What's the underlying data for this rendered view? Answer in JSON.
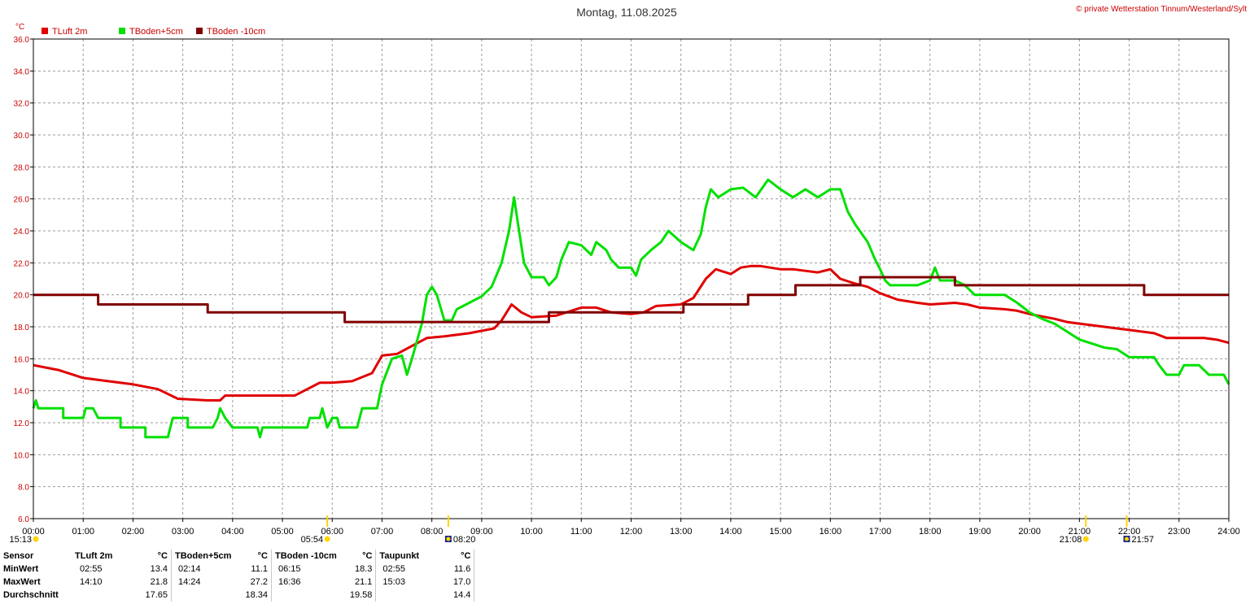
{
  "title": "Montag, 11.08.2025",
  "copyright": "© private Wetterstation Tinnum/Westerland/Sylt",
  "chart_data": {
    "type": "line",
    "unit_label": "°C",
    "ylim": [
      6,
      36
    ],
    "yticks": [
      "6.0",
      "8.0",
      "10.0",
      "12.0",
      "14.0",
      "16.0",
      "18.0",
      "20.0",
      "22.0",
      "24.0",
      "26.0",
      "28.0",
      "30.0",
      "32.0",
      "34.0",
      "36.0"
    ],
    "xlim": [
      0,
      24
    ],
    "xticks": [
      "00:00",
      "01:00",
      "02:00",
      "03:00",
      "04:00",
      "05:00",
      "06:00",
      "07:00",
      "08:00",
      "09:00",
      "10:00",
      "11:00",
      "12:00",
      "13:00",
      "14:00",
      "15:00",
      "16:00",
      "17:00",
      "18:00",
      "19:00",
      "20:00",
      "21:00",
      "22:00",
      "23:00",
      "24:00"
    ],
    "grid": true,
    "legend_position": "top-left",
    "series": [
      {
        "name": "TLuft 2m",
        "color": "#e00000",
        "points": [
          [
            0,
            15.6
          ],
          [
            0.5,
            15.3
          ],
          [
            1,
            14.8
          ],
          [
            1.5,
            14.6
          ],
          [
            2,
            14.4
          ],
          [
            2.5,
            14.1
          ],
          [
            2.9,
            13.5
          ],
          [
            3.5,
            13.4
          ],
          [
            3.75,
            13.4
          ],
          [
            3.85,
            13.7
          ],
          [
            4.5,
            13.7
          ],
          [
            5,
            13.7
          ],
          [
            5.25,
            13.7
          ],
          [
            5.5,
            14.1
          ],
          [
            5.75,
            14.5
          ],
          [
            6,
            14.5
          ],
          [
            6.4,
            14.6
          ],
          [
            6.8,
            15.1
          ],
          [
            7,
            16.2
          ],
          [
            7.3,
            16.3
          ],
          [
            7.6,
            16.8
          ],
          [
            7.9,
            17.3
          ],
          [
            8.25,
            17.4
          ],
          [
            8.75,
            17.6
          ],
          [
            9.25,
            17.9
          ],
          [
            9.4,
            18.4
          ],
          [
            9.6,
            19.4
          ],
          [
            9.8,
            18.9
          ],
          [
            10,
            18.6
          ],
          [
            10.5,
            18.7
          ],
          [
            11,
            19.2
          ],
          [
            11.3,
            19.2
          ],
          [
            11.6,
            18.9
          ],
          [
            12,
            18.8
          ],
          [
            12.25,
            18.9
          ],
          [
            12.5,
            19.3
          ],
          [
            13,
            19.4
          ],
          [
            13.25,
            19.8
          ],
          [
            13.5,
            21.0
          ],
          [
            13.7,
            21.6
          ],
          [
            14,
            21.3
          ],
          [
            14.2,
            21.7
          ],
          [
            14.4,
            21.8
          ],
          [
            14.6,
            21.8
          ],
          [
            15,
            21.6
          ],
          [
            15.25,
            21.6
          ],
          [
            15.5,
            21.5
          ],
          [
            15.75,
            21.4
          ],
          [
            16,
            21.6
          ],
          [
            16.2,
            21.0
          ],
          [
            16.5,
            20.7
          ],
          [
            16.75,
            20.5
          ],
          [
            17,
            20.1
          ],
          [
            17.35,
            19.7
          ],
          [
            17.75,
            19.5
          ],
          [
            18,
            19.4
          ],
          [
            18.5,
            19.5
          ],
          [
            18.75,
            19.4
          ],
          [
            19,
            19.2
          ],
          [
            19.5,
            19.1
          ],
          [
            19.75,
            19.0
          ],
          [
            20,
            18.8
          ],
          [
            20.5,
            18.5
          ],
          [
            20.75,
            18.3
          ],
          [
            21,
            18.2
          ],
          [
            21.5,
            18.0
          ],
          [
            22,
            17.8
          ],
          [
            22.5,
            17.6
          ],
          [
            22.75,
            17.3
          ],
          [
            23,
            17.3
          ],
          [
            23.5,
            17.3
          ],
          [
            23.75,
            17.2
          ],
          [
            24,
            17.0
          ]
        ]
      },
      {
        "name": "TBoden+5cm",
        "color": "#00e000",
        "points": [
          [
            0,
            12.9
          ],
          [
            0.05,
            13.4
          ],
          [
            0.1,
            12.9
          ],
          [
            0.6,
            12.9
          ],
          [
            0.6,
            12.3
          ],
          [
            1,
            12.3
          ],
          [
            1.05,
            12.9
          ],
          [
            1.2,
            12.9
          ],
          [
            1.3,
            12.3
          ],
          [
            1.75,
            12.3
          ],
          [
            1.75,
            11.7
          ],
          [
            2.25,
            11.7
          ],
          [
            2.25,
            11.1
          ],
          [
            2.7,
            11.1
          ],
          [
            2.75,
            11.7
          ],
          [
            2.8,
            12.3
          ],
          [
            3.1,
            12.3
          ],
          [
            3.1,
            11.7
          ],
          [
            3.6,
            11.7
          ],
          [
            3.7,
            12.3
          ],
          [
            3.75,
            12.9
          ],
          [
            3.85,
            12.3
          ],
          [
            4,
            11.7
          ],
          [
            4.5,
            11.7
          ],
          [
            4.55,
            11.1
          ],
          [
            4.6,
            11.7
          ],
          [
            5.5,
            11.7
          ],
          [
            5.55,
            12.3
          ],
          [
            5.75,
            12.3
          ],
          [
            5.8,
            12.9
          ],
          [
            5.85,
            12.3
          ],
          [
            5.9,
            11.7
          ],
          [
            6,
            12.3
          ],
          [
            6.1,
            12.3
          ],
          [
            6.15,
            11.7
          ],
          [
            6.5,
            11.7
          ],
          [
            6.55,
            12.3
          ],
          [
            6.6,
            12.9
          ],
          [
            6.9,
            12.9
          ],
          [
            7,
            14.4
          ],
          [
            7.2,
            16.0
          ],
          [
            7.4,
            16.2
          ],
          [
            7.5,
            15.0
          ],
          [
            7.6,
            16.0
          ],
          [
            7.8,
            18.2
          ],
          [
            7.9,
            20.0
          ],
          [
            8.0,
            20.5
          ],
          [
            8.1,
            20.0
          ],
          [
            8.25,
            18.4
          ],
          [
            8.4,
            18.4
          ],
          [
            8.5,
            19.1
          ],
          [
            8.75,
            19.5
          ],
          [
            9,
            19.9
          ],
          [
            9.2,
            20.5
          ],
          [
            9.4,
            22.0
          ],
          [
            9.55,
            24.0
          ],
          [
            9.65,
            26.1
          ],
          [
            9.75,
            24.0
          ],
          [
            9.85,
            22.0
          ],
          [
            10,
            21.1
          ],
          [
            10.25,
            21.1
          ],
          [
            10.35,
            20.6
          ],
          [
            10.5,
            21.1
          ],
          [
            10.6,
            22.2
          ],
          [
            10.75,
            23.3
          ],
          [
            11,
            23.1
          ],
          [
            11.2,
            22.5
          ],
          [
            11.3,
            23.3
          ],
          [
            11.5,
            22.8
          ],
          [
            11.6,
            22.2
          ],
          [
            11.75,
            21.7
          ],
          [
            12,
            21.7
          ],
          [
            12.1,
            21.2
          ],
          [
            12.2,
            22.2
          ],
          [
            12.4,
            22.8
          ],
          [
            12.6,
            23.3
          ],
          [
            12.75,
            24.0
          ],
          [
            13,
            23.3
          ],
          [
            13.25,
            22.8
          ],
          [
            13.4,
            23.8
          ],
          [
            13.5,
            25.5
          ],
          [
            13.6,
            26.6
          ],
          [
            13.75,
            26.1
          ],
          [
            14,
            26.6
          ],
          [
            14.25,
            26.7
          ],
          [
            14.5,
            26.1
          ],
          [
            14.75,
            27.2
          ],
          [
            15,
            26.6
          ],
          [
            15.25,
            26.1
          ],
          [
            15.5,
            26.6
          ],
          [
            15.75,
            26.1
          ],
          [
            16,
            26.6
          ],
          [
            16.2,
            26.6
          ],
          [
            16.35,
            25.2
          ],
          [
            16.5,
            24.4
          ],
          [
            16.75,
            23.3
          ],
          [
            16.9,
            22.2
          ],
          [
            17,
            21.6
          ],
          [
            17.1,
            20.9
          ],
          [
            17.2,
            20.6
          ],
          [
            17.5,
            20.6
          ],
          [
            17.75,
            20.6
          ],
          [
            18,
            20.9
          ],
          [
            18.1,
            21.7
          ],
          [
            18.2,
            20.9
          ],
          [
            18.5,
            20.9
          ],
          [
            18.7,
            20.6
          ],
          [
            18.9,
            20.0
          ],
          [
            19.25,
            20.0
          ],
          [
            19.5,
            20.0
          ],
          [
            19.75,
            19.5
          ],
          [
            20,
            18.9
          ],
          [
            20.25,
            18.5
          ],
          [
            20.5,
            18.2
          ],
          [
            20.75,
            17.7
          ],
          [
            21,
            17.2
          ],
          [
            21.5,
            16.7
          ],
          [
            21.75,
            16.6
          ],
          [
            22,
            16.1
          ],
          [
            22.5,
            16.1
          ],
          [
            22.6,
            15.6
          ],
          [
            22.75,
            15.0
          ],
          [
            23,
            15.0
          ],
          [
            23.1,
            15.6
          ],
          [
            23.4,
            15.6
          ],
          [
            23.6,
            15.0
          ],
          [
            23.9,
            15.0
          ],
          [
            24,
            14.4
          ]
        ]
      },
      {
        "name": "TBoden -10cm",
        "color": "#800000",
        "points": [
          [
            0,
            20.0
          ],
          [
            1.3,
            20.0
          ],
          [
            1.3,
            19.4
          ],
          [
            3.5,
            19.4
          ],
          [
            3.5,
            18.9
          ],
          [
            6.25,
            18.9
          ],
          [
            6.25,
            18.3
          ],
          [
            10.35,
            18.3
          ],
          [
            10.35,
            18.9
          ],
          [
            13.05,
            18.9
          ],
          [
            13.05,
            19.4
          ],
          [
            14.35,
            19.4
          ],
          [
            14.35,
            20.0
          ],
          [
            15.3,
            20.0
          ],
          [
            15.3,
            20.6
          ],
          [
            16.6,
            20.6
          ],
          [
            16.6,
            21.1
          ],
          [
            18.5,
            21.1
          ],
          [
            18.5,
            20.6
          ],
          [
            22.3,
            20.6
          ],
          [
            22.3,
            20.0
          ],
          [
            24,
            20.0
          ]
        ]
      }
    ],
    "sun_events": [
      {
        "time": "15:13",
        "hour": 0,
        "icon": "sun-dot-icon"
      },
      {
        "time": "05:54",
        "hour": 5.9,
        "icon": "sunrise-icon"
      },
      {
        "time": "08:20",
        "hour": 8.33,
        "icon": "moon-phase-icon"
      },
      {
        "time": "21:08",
        "hour": 21.13,
        "icon": "sunset-icon"
      },
      {
        "time": "21:57",
        "hour": 21.95,
        "icon": "moon-phase-icon"
      }
    ]
  },
  "stats": {
    "sensor_label": "Sensor",
    "rows": [
      "MinWert",
      "MaxWert",
      "Durchschnitt"
    ],
    "sensors": [
      {
        "name": "TLuft 2m",
        "unit": "°C",
        "min_time": "02:55",
        "min": "13.4",
        "max_time": "14:10",
        "max": "21.8",
        "avg": "17.65"
      },
      {
        "name": "TBoden+5cm",
        "unit": "°C",
        "min_time": "02:14",
        "min": "11.1",
        "max_time": "14:24",
        "max": "27.2",
        "avg": "18.34"
      },
      {
        "name": "TBoden -10cm",
        "unit": "°C",
        "min_time": "06:15",
        "min": "18.3",
        "max_time": "16:36",
        "max": "21.1",
        "avg": "19.58"
      },
      {
        "name": "Taupunkt",
        "unit": "°C",
        "min_time": "02:55",
        "min": "11.6",
        "max_time": "15:03",
        "max": "17.0",
        "avg": "14.4"
      }
    ]
  }
}
